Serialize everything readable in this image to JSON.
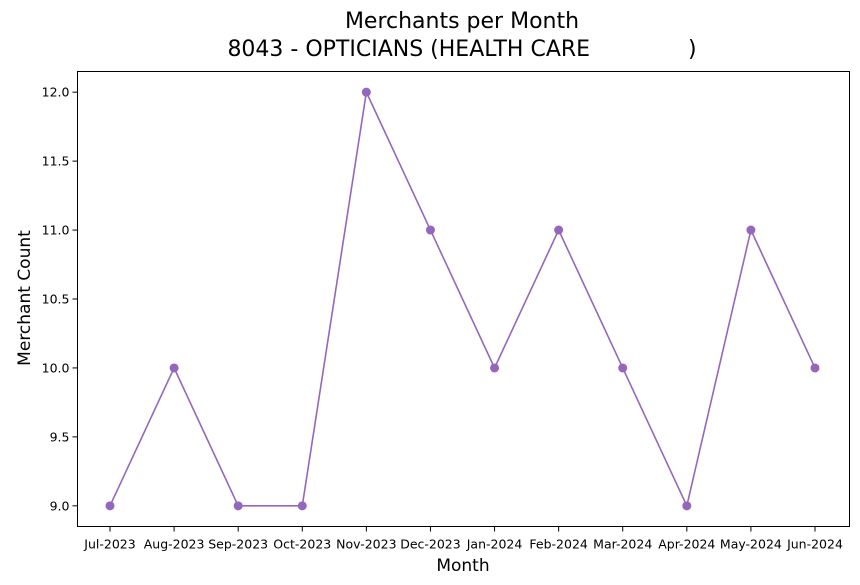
{
  "chart_data": {
    "type": "line",
    "title": "Merchants per Month",
    "subtitle": "8043 - OPTICIANS (HEALTH CARE              )",
    "xlabel": "Month",
    "ylabel": "Merchant Count",
    "categories": [
      "Jul-2023",
      "Aug-2023",
      "Sep-2023",
      "Oct-2023",
      "Nov-2023",
      "Dec-2023",
      "Jan-2024",
      "Feb-2024",
      "Mar-2024",
      "Apr-2024",
      "May-2024",
      "Jun-2024"
    ],
    "series": [
      {
        "values": [
          9,
          10,
          9,
          9,
          12,
          11,
          10,
          11,
          10,
          9,
          11,
          10
        ],
        "color": "#9467bd"
      }
    ],
    "yticks": [
      9.0,
      9.5,
      10.0,
      10.5,
      11.0,
      11.5,
      12.0
    ],
    "ytick_labels": [
      "9.0",
      "9.5",
      "10.0",
      "10.5",
      "11.0",
      "11.5",
      "12.0"
    ],
    "ylim": [
      8.85,
      12.15
    ],
    "grid": false,
    "legend": "none"
  }
}
